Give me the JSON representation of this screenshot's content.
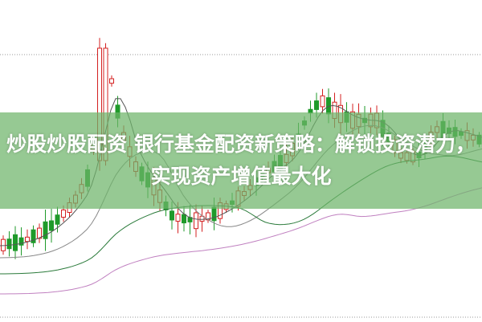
{
  "article": {
    "title": "炒股炒股配资 银行基金配资新策略：解锁投资潜力，实现资产增值最大化"
  },
  "colors": {
    "up": "#d42020",
    "down": "#1f9a2a",
    "banner": "#6eb469",
    "ma": "#555555"
  }
}
